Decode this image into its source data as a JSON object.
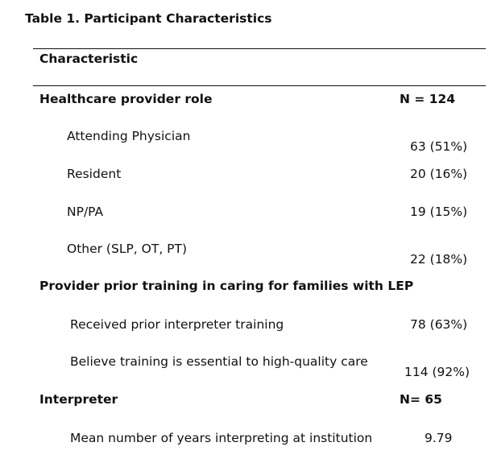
{
  "title": "Table 1. Participant Characteristics",
  "header": {
    "characteristic": "Characteristic"
  },
  "sections": [
    {
      "label": "Healthcare provider role",
      "n": "N = 124",
      "rows": [
        {
          "label": "Attending Physician",
          "value": "63 (51%)"
        },
        {
          "label": "Resident",
          "value": "20 (16%)"
        },
        {
          "label": "NP/PA",
          "value": "19 (15%)"
        },
        {
          "label": "Other (SLP, OT, PT)",
          "value": "22 (18%)"
        }
      ]
    },
    {
      "label": "Provider prior training in caring for families with LEP",
      "n": "",
      "rows": [
        {
          "label": "Received prior interpreter training",
          "value": "78 (63%)"
        },
        {
          "label": "Believe training is essential to high-quality care",
          "value": "114 (92%)"
        }
      ]
    },
    {
      "label": "Interpreter",
      "n": "N= 65",
      "rows": [
        {
          "label": "Mean number of years interpreting at institution",
          "value": "9.79"
        }
      ]
    }
  ]
}
